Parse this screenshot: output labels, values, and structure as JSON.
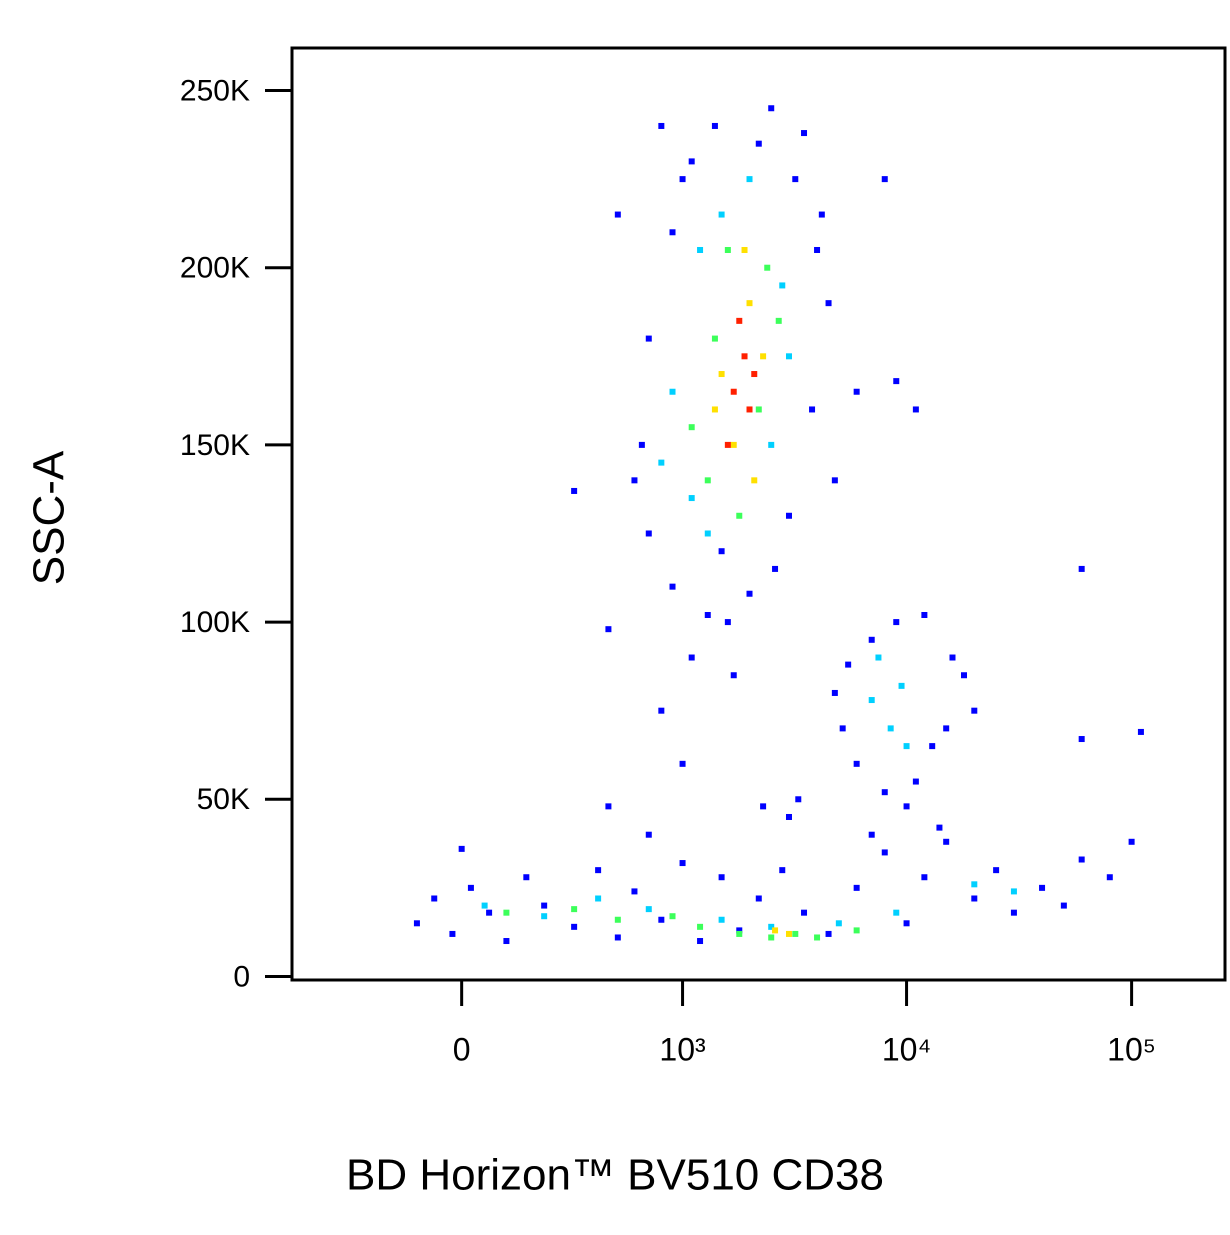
{
  "chart_data": {
    "type": "scatter",
    "xlabel": "BD Horizon™ BV510 CD38",
    "ylabel": "SSC-A",
    "xscale": "biexponential",
    "xlim": [
      -580,
      260000
    ],
    "ylim": [
      -1000,
      262000
    ],
    "xticks": [
      0,
      {
        "value": 1000,
        "label": "10³"
      },
      {
        "value": 10000,
        "label": "10⁴"
      },
      {
        "value": 100000,
        "label": "10⁵"
      }
    ],
    "yticks": [
      0,
      {
        "value": 50000,
        "label": "50K"
      },
      {
        "value": 100000,
        "label": "100K"
      },
      {
        "value": 150000,
        "label": "150K"
      },
      {
        "value": 200000,
        "label": "200K"
      },
      {
        "value": 250000,
        "label": "250K"
      }
    ],
    "series": [
      {
        "color": "#0000ff",
        "x": [
          800,
          1100,
          2500,
          3500,
          4200,
          900,
          700,
          650,
          700,
          900,
          1300,
          2000,
          3000,
          3800,
          4500,
          1000,
          1400,
          3200,
          600,
          2600,
          1600,
          1100,
          1700,
          800,
          500,
          300,
          4800,
          8000,
          9000,
          11000,
          6000,
          450,
          1000,
          2300,
          3300,
          1500,
          2200,
          4000,
          4800,
          5200,
          6000,
          7000,
          9000,
          11000,
          13000,
          16000,
          20000,
          18000,
          5500,
          8000,
          12000,
          15000,
          10000,
          -100,
          -60,
          -20,
          20,
          60,
          100,
          150,
          200,
          300,
          400,
          500,
          600,
          800,
          1000,
          1200,
          1500,
          1800,
          2200,
          2800,
          3500,
          4500,
          6000,
          8000,
          10000,
          12000,
          15000,
          20000,
          25000,
          30000,
          40000,
          50000,
          60000,
          80000,
          100000,
          110000,
          60000,
          60000,
          0,
          450,
          700,
          3000,
          7000,
          14000
        ],
        "y": [
          240000,
          230000,
          245000,
          238000,
          215000,
          210000,
          180000,
          150000,
          125000,
          110000,
          102000,
          108000,
          130000,
          160000,
          190000,
          225000,
          240000,
          225000,
          140000,
          115000,
          100000,
          90000,
          85000,
          75000,
          215000,
          137000,
          140000,
          225000,
          168000,
          160000,
          165000,
          98000,
          60000,
          48000,
          50000,
          120000,
          235000,
          205000,
          80000,
          70000,
          60000,
          95000,
          100000,
          55000,
          65000,
          90000,
          75000,
          85000,
          88000,
          52000,
          102000,
          70000,
          48000,
          15000,
          22000,
          12000,
          25000,
          18000,
          10000,
          28000,
          20000,
          14000,
          30000,
          11000,
          24000,
          16000,
          32000,
          10000,
          28000,
          13000,
          22000,
          30000,
          18000,
          12000,
          25000,
          35000,
          15000,
          28000,
          38000,
          22000,
          30000,
          18000,
          25000,
          20000,
          33000,
          28000,
          38000,
          69000,
          115000,
          67000,
          36000,
          48000,
          40000,
          45000,
          40000,
          42000
        ]
      },
      {
        "color": "#00d0ff",
        "x": [
          1200,
          2800,
          900,
          1100,
          2500,
          1500,
          3000,
          1300,
          800,
          2000,
          7000,
          8500,
          9500,
          10000,
          7500,
          50,
          200,
          400,
          700,
          1500,
          2500,
          5000,
          9000,
          20000,
          30000
        ],
        "y": [
          205000,
          195000,
          165000,
          135000,
          150000,
          215000,
          175000,
          125000,
          145000,
          225000,
          78000,
          70000,
          82000,
          65000,
          90000,
          20000,
          17000,
          22000,
          19000,
          16000,
          14000,
          15000,
          18000,
          26000,
          24000
        ]
      },
      {
        "color": "#3cff5a",
        "x": [
          1400,
          2400,
          1100,
          2200,
          1600,
          1300,
          2700,
          1800,
          100,
          300,
          500,
          900,
          1800,
          2500,
          3200,
          4000,
          6000,
          1200
        ],
        "y": [
          180000,
          200000,
          155000,
          160000,
          205000,
          140000,
          185000,
          130000,
          18000,
          19000,
          16000,
          17000,
          12000,
          11000,
          12000,
          11000,
          13000,
          14000
        ]
      },
      {
        "color": "#ffe000",
        "x": [
          1500,
          2000,
          1700,
          2300,
          1900,
          1400,
          2100,
          3000,
          2600
        ],
        "y": [
          170000,
          190000,
          150000,
          175000,
          205000,
          160000,
          140000,
          12000,
          13000
        ]
      },
      {
        "color": "#ff2000",
        "x": [
          1700,
          1900,
          2000,
          1800,
          1600,
          2100
        ],
        "y": [
          165000,
          175000,
          160000,
          185000,
          150000,
          170000
        ]
      }
    ]
  }
}
